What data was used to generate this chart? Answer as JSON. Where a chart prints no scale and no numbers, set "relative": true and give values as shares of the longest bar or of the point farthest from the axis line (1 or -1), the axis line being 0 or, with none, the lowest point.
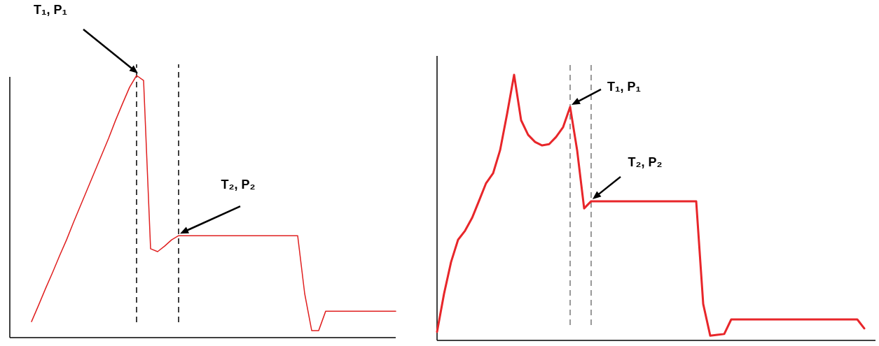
{
  "chart_data": [
    {
      "type": "line",
      "relative": true,
      "categories": [
        null,
        null,
        null,
        null,
        null,
        null,
        null,
        null,
        null,
        null,
        null,
        null,
        null,
        null,
        null,
        null,
        null,
        null,
        null,
        null,
        null,
        null,
        null,
        null,
        null,
        null,
        null,
        null,
        null,
        null,
        null,
        null,
        null,
        null,
        null,
        null,
        null,
        null,
        null,
        null,
        null,
        null,
        null,
        null,
        null,
        null,
        null,
        null,
        null,
        null,
        null,
        null,
        null
      ],
      "series": [
        {
          "color": "#e02020",
          "values": [
            0.061,
            0.123,
            0.187,
            0.248,
            0.312,
            0.373,
            0.44,
            0.504,
            0.568,
            0.632,
            0.696,
            0.76,
            0.829,
            0.893,
            0.955,
            1,
            0.981,
            0.339,
            0.328,
            0.349,
            0.373,
            0.389,
            0.389,
            0.389,
            0.389,
            0.389,
            0.389,
            0.389,
            0.389,
            0.389,
            0.389,
            0.389,
            0.389,
            0.389,
            0.389,
            0.389,
            0.389,
            0.389,
            0.389,
            0.168,
            0.027,
            0.027,
            0.101,
            0.101,
            0.101,
            0.101,
            0.101,
            0.101,
            0.101,
            0.101,
            0.101,
            0.101,
            0.101
          ]
        }
      ],
      "annotations": [
        "T₁, P₁",
        "T₂, P₂"
      ]
    },
    {
      "type": "line",
      "relative": true,
      "categories": [
        null,
        null,
        null,
        null,
        null,
        null,
        null,
        null,
        null,
        null,
        null,
        null,
        null,
        null,
        null,
        null,
        null,
        null,
        null,
        null,
        null,
        null,
        null,
        null,
        null,
        null,
        null,
        null,
        null,
        null,
        null,
        null,
        null,
        null,
        null,
        null,
        null,
        null,
        null,
        null,
        null,
        null,
        null,
        null,
        null,
        null,
        null,
        null,
        null,
        null,
        null,
        null,
        null,
        null,
        null,
        null,
        null,
        null,
        null,
        null,
        null,
        null
      ],
      "series": [
        {
          "color": "#e8262a",
          "values": [
            0.032,
            0.176,
            0.295,
            0.379,
            0.413,
            0.461,
            0.526,
            0.592,
            0.629,
            0.716,
            0.853,
            1,
            0.829,
            0.774,
            0.747,
            0.734,
            0.739,
            0.766,
            0.803,
            0.879,
            0.716,
            0.497,
            0.524,
            0.524,
            0.524,
            0.524,
            0.524,
            0.524,
            0.524,
            0.524,
            0.524,
            0.524,
            0.524,
            0.524,
            0.524,
            0.524,
            0.524,
            0.524,
            0.137,
            0.018,
            0.021,
            0.024,
            0.079,
            0.079,
            0.079,
            0.079,
            0.079,
            0.079,
            0.079,
            0.079,
            0.079,
            0.079,
            0.079,
            0.079,
            0.079,
            0.079,
            0.079,
            0.079,
            0.079,
            0.079,
            0.079,
            0.045
          ]
        }
      ],
      "annotations": [
        "T₁, P₁",
        "T₂, P₂"
      ]
    }
  ]
}
